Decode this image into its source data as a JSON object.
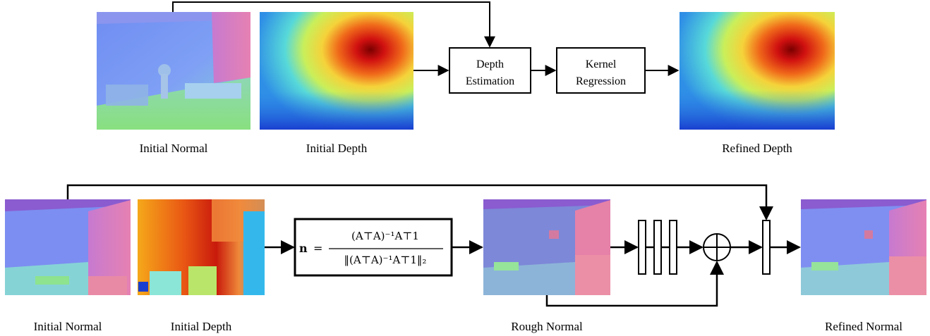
{
  "top_row": {
    "captions": {
      "initial_normal": "Initial Normal",
      "initial_depth": "Initial Depth",
      "refined_depth": "Refined Depth"
    },
    "boxes": {
      "depth_estimation": [
        "Depth",
        "Estimation"
      ],
      "kernel_regression": [
        "Kernel",
        "Regression"
      ]
    }
  },
  "bottom_row": {
    "captions": {
      "initial_normal": "Initial Normal",
      "initial_depth": "Initial Depth",
      "rough_normal": "Rough Normal",
      "refined_normal": "Refined Normal"
    },
    "formula": {
      "lhs": "n",
      "equals": "=",
      "numerator": "(A⊤A)⁻¹A⊤1",
      "denominator": "‖(A⊤A)⁻¹A⊤1‖₂"
    },
    "sum_node_symbol": "+"
  },
  "colors": {
    "line": "#000000",
    "background": "#ffffff",
    "normal_blue": "#7f87f0",
    "normal_purple": "#8a5cd0",
    "normal_pink": "#e77fb0",
    "normal_green": "#8de38e",
    "depth_red": "#c80000",
    "depth_orange": "#f6a21a",
    "depth_yellow": "#f5e53b",
    "depth_cyan": "#3fd4e8",
    "depth_blue": "#1f46d6"
  }
}
